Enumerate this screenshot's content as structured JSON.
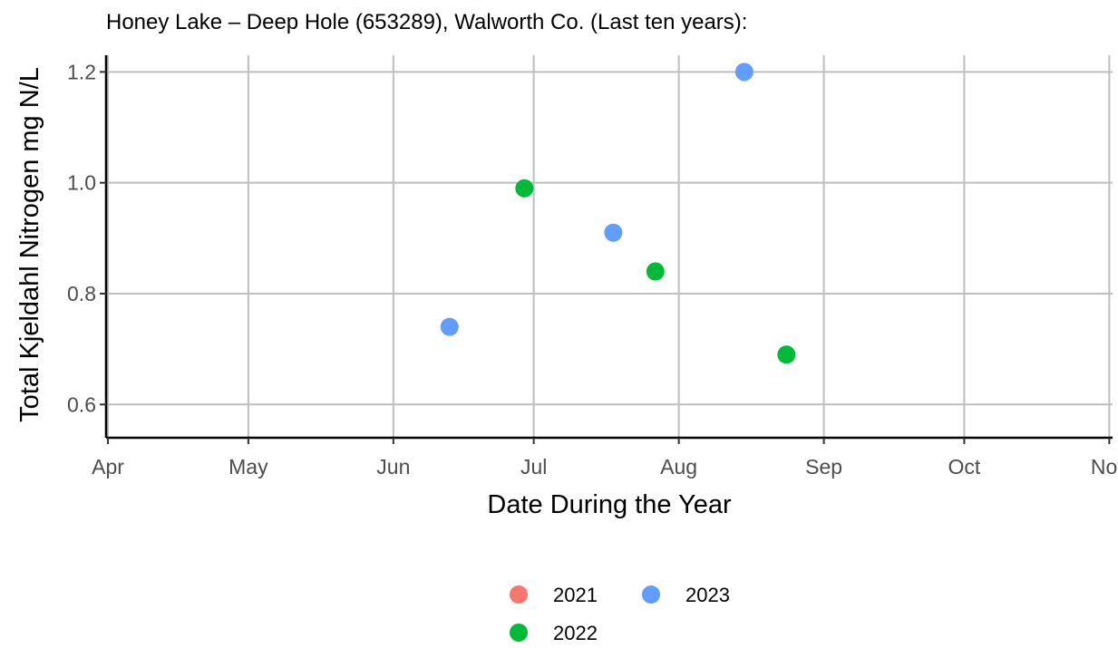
{
  "chart_data": {
    "type": "scatter",
    "title": "Honey Lake – Deep Hole (653289), Walworth Co.  (Last ten years):",
    "xlabel": "Date During the Year",
    "ylabel": "Total Kjeldahl Nitrogen mg N/L",
    "x_ticks": [
      "Apr",
      "May",
      "Jun",
      "Jul",
      "Aug",
      "Sep",
      "Oct",
      "Nov"
    ],
    "x_tick_dates": [
      "04-01",
      "05-01",
      "06-01",
      "07-01",
      "08-01",
      "09-01",
      "10-01",
      "11-01"
    ],
    "xlim": [
      "04-01",
      "11-01"
    ],
    "y_ticks": [
      "0.6",
      "0.8",
      "1.0",
      "1.2"
    ],
    "y_tick_values": [
      0.6,
      0.8,
      1.0,
      1.2
    ],
    "ylim": [
      0.54,
      1.23
    ],
    "grid": true,
    "legend_position": "bottom",
    "series": [
      {
        "name": "2021",
        "color": "#F8766D",
        "points": []
      },
      {
        "name": "2022",
        "color": "#00BA38",
        "points": [
          {
            "x": "06-29",
            "y": 0.99
          },
          {
            "x": "07-27",
            "y": 0.84
          },
          {
            "x": "08-24",
            "y": 0.69
          }
        ]
      },
      {
        "name": "2023",
        "color": "#619CFF",
        "points": [
          {
            "x": "06-13",
            "y": 0.74
          },
          {
            "x": "07-18",
            "y": 0.91
          },
          {
            "x": "08-15",
            "y": 1.2
          }
        ]
      }
    ]
  }
}
